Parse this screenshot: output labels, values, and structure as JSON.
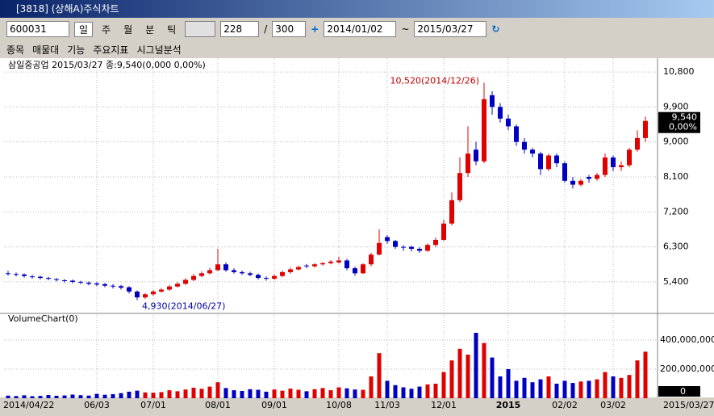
{
  "window": {
    "title": "[3818] (상해A)주식차트"
  },
  "toolbar": {
    "code": "600031",
    "periods": [
      "일",
      "주",
      "월",
      "분",
      "틱"
    ],
    "count": "228",
    "separator": "/",
    "total": "300",
    "from": "2014/01/02",
    "tilde": "~",
    "to": "2015/03/27",
    "menus": [
      "종목",
      "매물대",
      "기능",
      "주요지표",
      "시그널분석"
    ]
  },
  "chart_data": {
    "type": "candlestick",
    "title": "삼일중공업  2015/03/27 종:9,540(0,000 0,00%)",
    "categories": [
      "2014/04/22",
      null,
      null,
      null,
      null,
      null,
      null,
      null,
      null,
      null,
      null,
      "06/03",
      null,
      null,
      null,
      null,
      null,
      null,
      "07/01",
      null,
      null,
      null,
      null,
      null,
      null,
      null,
      "08/01",
      null,
      null,
      null,
      null,
      null,
      null,
      "09/01",
      null,
      null,
      null,
      null,
      null,
      null,
      null,
      "10/08",
      null,
      null,
      null,
      null,
      null,
      "11/03",
      null,
      null,
      null,
      null,
      null,
      null,
      "12/01",
      null,
      null,
      null,
      null,
      null,
      null,
      null,
      "2015",
      null,
      null,
      null,
      null,
      null,
      null,
      "02/02",
      null,
      null,
      null,
      null,
      null,
      "03/02",
      null,
      null,
      null,
      "2015/03/27"
    ],
    "open": [
      5620,
      5600,
      5590,
      5540,
      5530,
      5500,
      5470,
      5440,
      5430,
      5400,
      5380,
      5360,
      5340,
      5300,
      5290,
      5260,
      5150,
      5000,
      5080,
      5150,
      5200,
      5280,
      5350,
      5450,
      5550,
      5620,
      5700,
      5850,
      5700,
      5650,
      5620,
      5580,
      5500,
      5480,
      5550,
      5650,
      5720,
      5820,
      5800,
      5850,
      5880,
      5900,
      5950,
      5750,
      5620,
      5850,
      6100,
      6550,
      6450,
      6300,
      6300,
      6250,
      6200,
      6350,
      6480,
      6900,
      7500,
      8200,
      8800,
      8500,
      10200,
      9900,
      9600,
      9400,
      9000,
      8800,
      8700,
      8300,
      8650,
      8450,
      8000,
      7900,
      8100,
      8050,
      8150,
      8600,
      8350,
      8400,
      8800,
      9100
    ],
    "high": [
      5680,
      5640,
      5620,
      5580,
      5560,
      5530,
      5500,
      5470,
      5460,
      5430,
      5410,
      5390,
      5370,
      5340,
      5320,
      5290,
      5180,
      5110,
      5190,
      5240,
      5320,
      5390,
      5490,
      5600,
      5670,
      5760,
      6250,
      5900,
      5750,
      5690,
      5660,
      5610,
      5540,
      5590,
      5690,
      5770,
      5820,
      5860,
      5880,
      5910,
      5960,
      6050,
      5990,
      5790,
      5880,
      6150,
      6750,
      6600,
      6480,
      6340,
      6330,
      6290,
      6390,
      6540,
      7000,
      7700,
      8600,
      9400,
      9000,
      10520,
      10300,
      10000,
      9700,
      9450,
      9100,
      8850,
      8750,
      8700,
      8700,
      8500,
      8100,
      8050,
      8150,
      8200,
      8700,
      8650,
      8500,
      8850,
      9300,
      9650
    ],
    "low": [
      5560,
      5540,
      5510,
      5480,
      5460,
      5440,
      5410,
      5380,
      5360,
      5340,
      5310,
      5290,
      5260,
      5230,
      5200,
      5100,
      4930,
      4960,
      5040,
      5120,
      5170,
      5250,
      5320,
      5420,
      5520,
      5590,
      5680,
      5660,
      5610,
      5580,
      5540,
      5460,
      5430,
      5450,
      5520,
      5610,
      5690,
      5750,
      5770,
      5820,
      5850,
      5870,
      5700,
      5560,
      5600,
      5800,
      6080,
      6380,
      6250,
      6200,
      6180,
      6150,
      6170,
      6300,
      6450,
      6850,
      7450,
      8100,
      8400,
      8450,
      9700,
      9500,
      9300,
      8900,
      8700,
      8600,
      8150,
      8250,
      8350,
      7950,
      7800,
      7850,
      7950,
      8000,
      8100,
      8250,
      8250,
      8350,
      8750,
      9000
    ],
    "close": [
      5600,
      5580,
      5550,
      5520,
      5500,
      5480,
      5450,
      5420,
      5400,
      5380,
      5350,
      5330,
      5300,
      5280,
      5250,
      5150,
      5000,
      5080,
      5150,
      5200,
      5280,
      5350,
      5450,
      5550,
      5620,
      5700,
      5850,
      5700,
      5650,
      5620,
      5580,
      5500,
      5480,
      5550,
      5650,
      5720,
      5780,
      5800,
      5850,
      5880,
      5920,
      5950,
      5750,
      5620,
      5850,
      6100,
      6400,
      6450,
      6300,
      6280,
      6250,
      6200,
      6350,
      6480,
      6900,
      7500,
      8200,
      8700,
      8500,
      10100,
      9900,
      9600,
      9400,
      9000,
      8800,
      8700,
      8300,
      8650,
      8450,
      8000,
      7900,
      8000,
      8050,
      8150,
      8600,
      8350,
      8400,
      8800,
      9100,
      9540
    ],
    "ylim": [
      4650,
      11030
    ],
    "yticks": [
      {
        "value": 10800,
        "label": "10,800"
      },
      {
        "value": 9900,
        "label": "9,900"
      },
      {
        "value": 9000,
        "label": "9,000"
      },
      {
        "value": 8100,
        "label": "8,100"
      },
      {
        "value": 7200,
        "label": "7,200"
      },
      {
        "value": 6300,
        "label": "6,300"
      },
      {
        "value": 5400,
        "label": "5,400"
      }
    ],
    "up_color": "#e00000",
    "down_color": "#0000c0",
    "annotations": [
      "10,520(2014/12/26)",
      "4,930(2014/06/27)"
    ],
    "last_price": "9,540",
    "last_change": "0,00%",
    "volume": {
      "title": "VolumeChart(0)",
      "values": [
        18000000,
        15000000,
        20000000,
        14000000,
        16000000,
        22000000,
        17000000,
        19000000,
        25000000,
        21000000,
        18000000,
        30000000,
        24000000,
        28000000,
        35000000,
        45000000,
        52000000,
        40000000,
        38000000,
        42000000,
        55000000,
        48000000,
        60000000,
        72000000,
        65000000,
        80000000,
        110000000,
        70000000,
        55000000,
        50000000,
        62000000,
        58000000,
        45000000,
        60000000,
        52000000,
        66000000,
        58000000,
        48000000,
        62000000,
        70000000,
        55000000,
        75000000,
        68000000,
        60000000,
        58000000,
        150000000,
        310000000,
        120000000,
        90000000,
        75000000,
        65000000,
        80000000,
        95000000,
        100000000,
        180000000,
        260000000,
        340000000,
        300000000,
        450000000,
        380000000,
        280000000,
        150000000,
        200000000,
        120000000,
        140000000,
        110000000,
        130000000,
        150000000,
        100000000,
        120000000,
        105000000,
        115000000,
        120000000,
        130000000,
        180000000,
        150000000,
        140000000,
        160000000,
        260000000,
        320000000
      ],
      "ylim": [
        0,
        500000000
      ],
      "yticks": [
        {
          "value": 400000000,
          "label": "400,000,000"
        },
        {
          "value": 200000000,
          "label": "200,000,000"
        }
      ],
      "current": "0"
    }
  }
}
